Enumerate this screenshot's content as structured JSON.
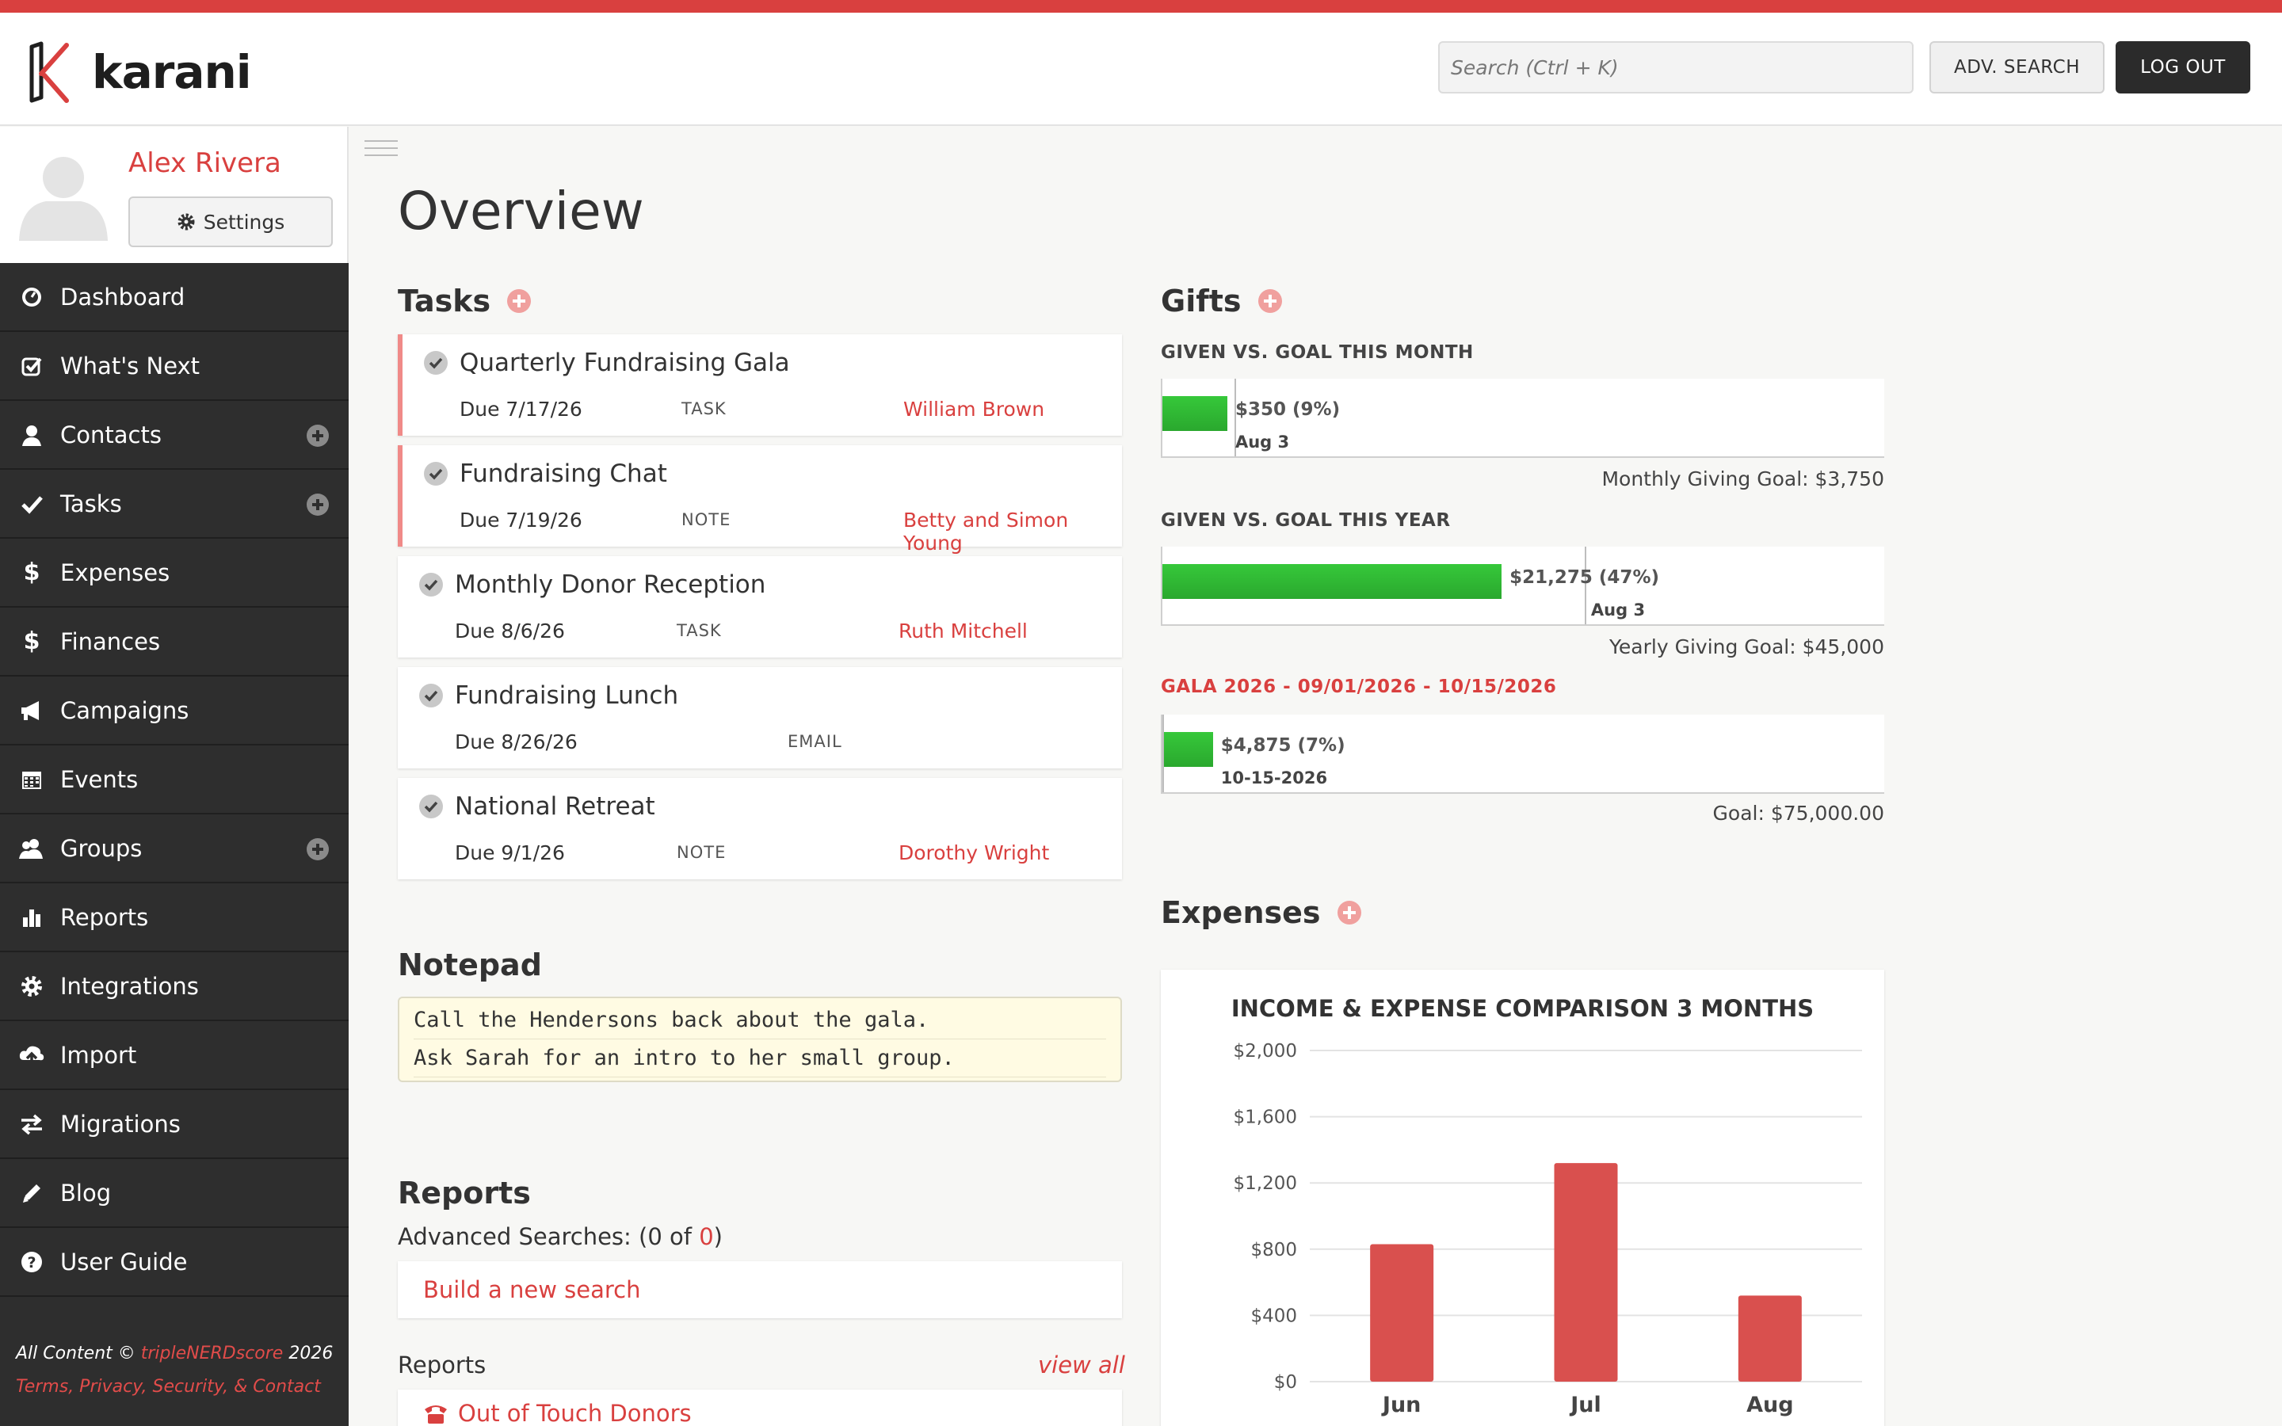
{
  "app": {
    "name": "karani"
  },
  "header": {
    "search_placeholder": "Search (Ctrl + K)",
    "adv_search_label": "ADV. SEARCH",
    "logout_label": "LOG OUT"
  },
  "profile": {
    "name": "Alex Rivera",
    "settings_label": "Settings"
  },
  "nav": [
    {
      "label": "Dashboard",
      "icon": "dashboard-icon",
      "plus": false
    },
    {
      "label": "What's Next",
      "icon": "checkbox-icon",
      "plus": false
    },
    {
      "label": "Contacts",
      "icon": "person-icon",
      "plus": true
    },
    {
      "label": "Tasks",
      "icon": "check-icon",
      "plus": true
    },
    {
      "label": "Expenses",
      "icon": "dollar-icon",
      "plus": false
    },
    {
      "label": "Finances",
      "icon": "dollar-icon",
      "plus": false
    },
    {
      "label": "Campaigns",
      "icon": "megaphone-icon",
      "plus": false
    },
    {
      "label": "Events",
      "icon": "calendar-icon",
      "plus": false
    },
    {
      "label": "Groups",
      "icon": "group-icon",
      "plus": true
    },
    {
      "label": "Reports",
      "icon": "bar-chart-icon",
      "plus": false
    },
    {
      "label": "Integrations",
      "icon": "gear-icon",
      "plus": false
    },
    {
      "label": "Import",
      "icon": "cloud-upload-icon",
      "plus": false
    },
    {
      "label": "Migrations",
      "icon": "arrows-icon",
      "plus": false
    },
    {
      "label": "Blog",
      "icon": "pencil-icon",
      "plus": false
    },
    {
      "label": "User Guide",
      "icon": "question-icon",
      "plus": false
    }
  ],
  "footer": {
    "prefix": "All Content © ",
    "brand": "tripleNERDscore",
    "year": " 2026",
    "links": "Terms, Privacy, Security, & Contact"
  },
  "main": {
    "title": "Overview"
  },
  "tasks": {
    "title": "Tasks",
    "items": [
      {
        "name": "Quarterly Fundraising Gala",
        "due": "Due 7/17/26",
        "type": "TASK",
        "contact": "William Brown",
        "flag": true
      },
      {
        "name": "Fundraising Chat",
        "due": "Due 7/19/26",
        "type": "NOTE",
        "contact": "Betty and Simon Young",
        "flag": true
      },
      {
        "name": "Monthly Donor Reception",
        "due": "Due 8/6/26",
        "type": "TASK",
        "contact": "Ruth Mitchell",
        "flag": false
      },
      {
        "name": "Fundraising Lunch",
        "due": "Due 8/26/26",
        "type": "EMAIL",
        "contact": "",
        "flag": false
      },
      {
        "name": "National Retreat",
        "due": "Due 9/1/26",
        "type": "NOTE",
        "contact": "Dorothy Wright",
        "flag": false
      }
    ]
  },
  "notepad": {
    "title": "Notepad",
    "lines": [
      "Call the Hendersons back about the gala.",
      "Ask Sarah for an intro to her small group."
    ]
  },
  "reports": {
    "title": "Reports",
    "adv_prefix": "Advanced Searches: (0 of ",
    "adv_count": "0",
    "adv_suffix": ")",
    "build_label": "Build a new search",
    "sub_title": "Reports",
    "view_all": "view all",
    "first_report": "Out of Touch Donors"
  },
  "gifts": {
    "title": "Gifts",
    "month": {
      "label": "GIVEN VS. GOAL THIS MONTH",
      "value": "$350 (9%)",
      "fraction": 0.09,
      "mark_fraction": 0.1,
      "date": "Aug 3",
      "goal": "Monthly Giving Goal: $3,750"
    },
    "year": {
      "label": "GIVEN VS. GOAL THIS YEAR",
      "value": "$21,275 (47%)",
      "fraction": 0.47,
      "mark_fraction": 0.585,
      "date": "Aug 3",
      "goal": "Yearly Giving Goal: $45,000"
    },
    "campaign": {
      "label": "GALA 2026 - 09/01/2026 - 10/15/2026",
      "value": "$4,875 (7%)",
      "fraction": 0.07,
      "mark_fraction": 0.0,
      "date": "10-15-2026",
      "goal": "Goal: $75,000.00"
    }
  },
  "expenses": {
    "title": "Expenses"
  },
  "chart_data": {
    "type": "bar",
    "title": "INCOME & EXPENSE COMPARISON 3 MONTHS",
    "categories": [
      "Jun",
      "Jul",
      "Aug"
    ],
    "values": [
      830,
      1320,
      520
    ],
    "ylim": [
      0,
      2000
    ],
    "yticks": [
      "$0",
      "$400",
      "$800",
      "$1,200",
      "$1,600",
      "$2,000"
    ],
    "ytick_values": [
      0,
      400,
      800,
      1200,
      1600,
      2000
    ],
    "bar_color": "#d9504e",
    "grid": true
  },
  "colors": {
    "accent": "#d9403f",
    "sidebar": "#2e2e2e",
    "gift_fill": "#2fb534"
  }
}
